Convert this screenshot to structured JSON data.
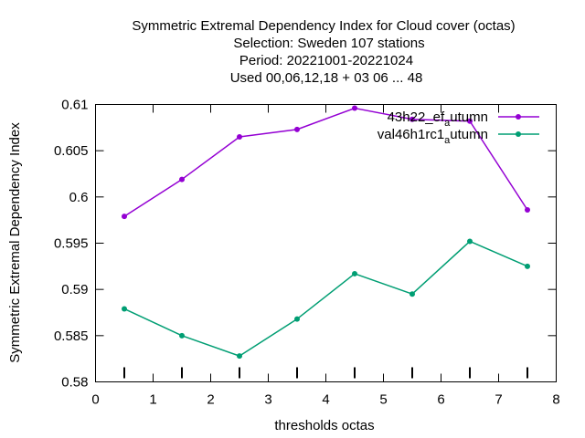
{
  "chart_data": {
    "type": "line",
    "title_lines": [
      "Symmetric Extremal Dependency Index  for Cloud cover (octas)",
      "Selection: Sweden    107 stations",
      "Period: 20221001-20221024",
      "Used  00,06,12,18  + 03 06 ... 48"
    ],
    "xlabel": "thresholds octas",
    "ylabel": "Symmetric Extremal Dependency Index",
    "xlim": [
      0,
      8
    ],
    "ylim": [
      0.58,
      0.61
    ],
    "xticks": [
      "0",
      "1",
      "2",
      "3",
      "4",
      "5",
      "6",
      "7",
      "8"
    ],
    "yticks": [
      "0.58",
      "0.585",
      "0.59",
      "0.595",
      "0.6",
      "0.605",
      "0.61"
    ],
    "x": [
      0.5,
      1.5,
      2.5,
      3.5,
      4.5,
      5.5,
      6.5,
      7.5
    ],
    "legend_position": "top-right",
    "series": [
      {
        "name_main": "43h22_ef",
        "name_sub": "a",
        "name_tail": "utumn",
        "color": "#9400d3",
        "values": [
          0.5979,
          0.6019,
          0.6065,
          0.6073,
          0.6096,
          0.6084,
          0.6082,
          0.5986
        ]
      },
      {
        "name_main": "val46h1rc1",
        "name_sub": "a",
        "name_tail": "utumn",
        "color": "#009e73",
        "values": [
          0.5879,
          0.585,
          0.5828,
          0.5868,
          0.5917,
          0.5895,
          0.5952,
          0.5925
        ]
      }
    ]
  }
}
